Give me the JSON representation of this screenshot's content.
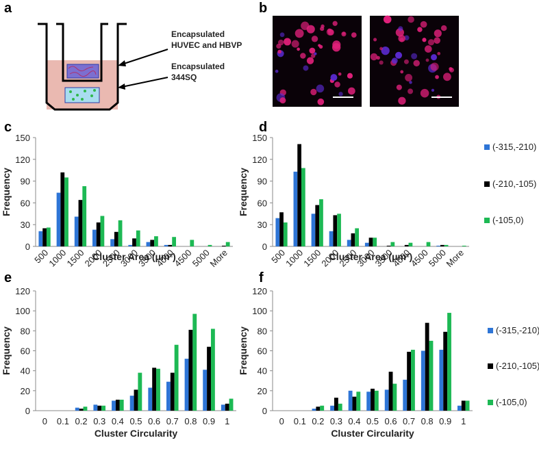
{
  "panel_labels": [
    "a",
    "b",
    "c",
    "d",
    "e",
    "f"
  ],
  "diagram": {
    "top_label": [
      "Encapsulated",
      "HUVEC and HBVP"
    ],
    "bottom_label": [
      "Encapsulated",
      "344SQ"
    ]
  },
  "chart_data": [
    {
      "type": "bar",
      "ylabel": "Frequency",
      "xlabel": "Cluster Area (μm²)",
      "categories": [
        "500",
        "1000",
        "1500",
        "2000",
        "2500",
        "3000",
        "3500",
        "4000",
        "4500",
        "5000",
        "More"
      ],
      "series": [
        {
          "color": "#2e75d6",
          "values": [
            21,
            74,
            41,
            23,
            10,
            2,
            6,
            2,
            0,
            0,
            0
          ]
        },
        {
          "color": "#000000",
          "values": [
            25,
            102,
            64,
            33,
            20,
            11,
            9,
            2,
            0,
            0,
            1
          ]
        },
        {
          "color": "#1db954",
          "values": [
            26,
            95,
            83,
            42,
            36,
            22,
            14,
            13,
            9,
            2,
            6
          ]
        }
      ],
      "ylim": [
        0,
        150
      ],
      "yticks": [
        0,
        30,
        60,
        90,
        120,
        150
      ]
    },
    {
      "type": "bar",
      "ylabel": "Frequency",
      "xlabel": "Cluster Area (μm²)",
      "categories": [
        "500",
        "1000",
        "1500",
        "2000",
        "2500",
        "3000",
        "3500",
        "4000",
        "4500",
        "5000",
        "More"
      ],
      "series": [
        {
          "name": "(-315,-210)",
          "color": "#2e75d6",
          "values": [
            39,
            103,
            45,
            21,
            9,
            5,
            0,
            0,
            0,
            1,
            0
          ]
        },
        {
          "name": "(-210,-105)",
          "color": "#000000",
          "values": [
            47,
            141,
            57,
            43,
            18,
            12,
            1,
            2,
            0,
            2,
            0
          ]
        },
        {
          "name": "(-105,0)",
          "color": "#1db954",
          "values": [
            33,
            108,
            65,
            45,
            25,
            12,
            6,
            5,
            6,
            2,
            1
          ]
        }
      ],
      "ylim": [
        0,
        150
      ],
      "yticks": [
        0,
        30,
        60,
        90,
        120,
        150
      ]
    },
    {
      "type": "bar",
      "ylabel": "Frequency",
      "xlabel": "Cluster Circularity",
      "categories": [
        "0",
        "0.1",
        "0.2",
        "0.3",
        "0.4",
        "0.5",
        "0.6",
        "0.7",
        "0.8",
        "0.9",
        "1"
      ],
      "series": [
        {
          "color": "#2e75d6",
          "values": [
            0,
            0,
            3,
            6,
            10,
            15,
            23,
            29,
            52,
            41,
            6
          ]
        },
        {
          "color": "#000000",
          "values": [
            0,
            0,
            2,
            5,
            11,
            21,
            43,
            38,
            81,
            64,
            7
          ]
        },
        {
          "color": "#1db954",
          "values": [
            0,
            0,
            4,
            5,
            11,
            38,
            42,
            66,
            97,
            82,
            12
          ]
        }
      ],
      "ylim": [
        0,
        120
      ],
      "yticks": [
        0,
        20,
        40,
        60,
        80,
        100,
        120
      ]
    },
    {
      "type": "bar",
      "ylabel": "Frequency",
      "xlabel": "Cluster Circularity",
      "categories": [
        "0",
        "0.1",
        "0.2",
        "0.3",
        "0.4",
        "0.5",
        "0.6",
        "0.7",
        "0.8",
        "0.9",
        "1"
      ],
      "series": [
        {
          "name": "(-315,-210)",
          "color": "#2e75d6",
          "values": [
            0,
            0,
            2,
            5,
            20,
            19,
            21,
            31,
            60,
            61,
            5
          ]
        },
        {
          "name": "(-210,-105)",
          "color": "#000000",
          "values": [
            0,
            0,
            4,
            13,
            14,
            22,
            39,
            59,
            88,
            79,
            10
          ]
        },
        {
          "name": "(-105,0)",
          "color": "#1db954",
          "values": [
            0,
            0,
            5,
            7,
            19,
            20,
            27,
            61,
            70,
            98,
            10
          ]
        }
      ],
      "ylim": [
        0,
        120
      ],
      "yticks": [
        0,
        20,
        40,
        60,
        80,
        100,
        120
      ]
    }
  ]
}
